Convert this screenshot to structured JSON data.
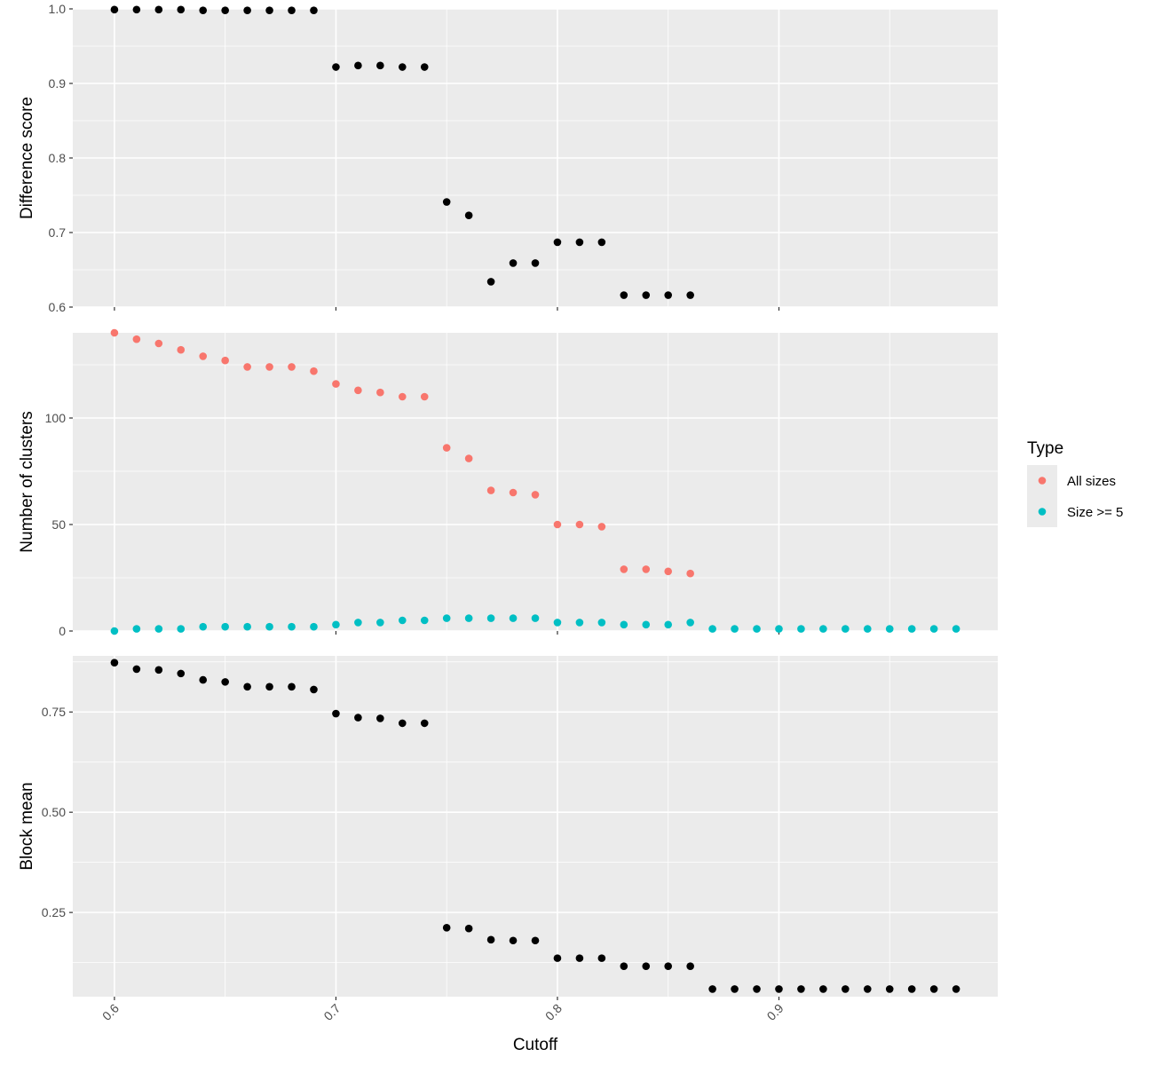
{
  "chart_data": [
    {
      "type": "scatter",
      "ylabel": "Difference score",
      "ylim": [
        0.6,
        1.0
      ],
      "yticks": [
        0.6,
        0.7,
        0.8,
        0.9,
        1.0
      ],
      "ytick_labels": [
        "0.6",
        "0.7",
        "0.8",
        "0.9",
        "1.0"
      ],
      "series": [
        {
          "color": "#000000",
          "x": [
            0.6,
            0.61,
            0.62,
            0.63,
            0.64,
            0.65,
            0.66,
            0.67,
            0.68,
            0.69,
            0.7,
            0.71,
            0.72,
            0.73,
            0.74,
            0.75,
            0.76,
            0.77,
            0.78,
            0.79,
            0.8,
            0.81,
            0.82,
            0.83,
            0.84,
            0.85,
            0.86
          ],
          "y": [
            0.999,
            0.999,
            0.999,
            0.999,
            0.998,
            0.998,
            0.998,
            0.998,
            0.998,
            0.998,
            0.922,
            0.924,
            0.924,
            0.922,
            0.922,
            0.741,
            0.723,
            0.634,
            0.659,
            0.659,
            0.687,
            0.687,
            0.687,
            0.616,
            0.616,
            0.616,
            0.616
          ]
        }
      ]
    },
    {
      "type": "scatter",
      "ylabel": "Number of clusters",
      "ylim": [
        0,
        140
      ],
      "yticks": [
        0,
        50,
        100
      ],
      "ytick_labels": [
        "0",
        "50",
        "100"
      ],
      "series": [
        {
          "name": "All sizes",
          "color": "#F8766D",
          "x": [
            0.6,
            0.61,
            0.62,
            0.63,
            0.64,
            0.65,
            0.66,
            0.67,
            0.68,
            0.69,
            0.7,
            0.71,
            0.72,
            0.73,
            0.74,
            0.75,
            0.76,
            0.77,
            0.78,
            0.79,
            0.8,
            0.81,
            0.82,
            0.83,
            0.84,
            0.85,
            0.86
          ],
          "y": [
            140,
            137,
            135,
            132,
            129,
            127,
            124,
            124,
            124,
            122,
            116,
            113,
            112,
            110,
            110,
            86,
            81,
            66,
            65,
            64,
            50,
            50,
            49,
            29,
            29,
            28,
            27
          ]
        },
        {
          "name": "Size >= 5",
          "color": "#00BFC4",
          "x": [
            0.6,
            0.61,
            0.62,
            0.63,
            0.64,
            0.65,
            0.66,
            0.67,
            0.68,
            0.69,
            0.7,
            0.71,
            0.72,
            0.73,
            0.74,
            0.75,
            0.76,
            0.77,
            0.78,
            0.79,
            0.8,
            0.81,
            0.82,
            0.83,
            0.84,
            0.85,
            0.86,
            0.87,
            0.88,
            0.89,
            0.9,
            0.91,
            0.92,
            0.93,
            0.94,
            0.95,
            0.96,
            0.97,
            0.98
          ],
          "y": [
            0,
            1,
            1,
            1,
            2,
            2,
            2,
            2,
            2,
            2,
            3,
            4,
            4,
            5,
            5,
            6,
            6,
            6,
            6,
            6,
            4,
            4,
            4,
            3,
            3,
            3,
            4,
            1,
            1,
            1,
            1,
            1,
            1,
            1,
            1,
            1,
            1,
            1,
            1
          ]
        }
      ]
    },
    {
      "type": "scatter",
      "xlabel": "Cutoff",
      "ylabel": "Block mean",
      "ylim": [
        0.04,
        0.89
      ],
      "yticks": [
        0.25,
        0.5,
        0.75
      ],
      "ytick_labels": [
        "0.25",
        "0.50",
        "0.75"
      ],
      "series": [
        {
          "color": "#000000",
          "x": [
            0.6,
            0.61,
            0.62,
            0.63,
            0.64,
            0.65,
            0.66,
            0.67,
            0.68,
            0.69,
            0.7,
            0.71,
            0.72,
            0.73,
            0.74,
            0.75,
            0.76,
            0.77,
            0.78,
            0.79,
            0.8,
            0.81,
            0.82,
            0.83,
            0.84,
            0.85,
            0.86,
            0.87,
            0.88,
            0.89,
            0.9,
            0.91,
            0.92,
            0.93,
            0.94,
            0.95,
            0.96,
            0.97,
            0.98
          ],
          "y": [
            0.873,
            0.857,
            0.855,
            0.846,
            0.83,
            0.825,
            0.813,
            0.813,
            0.813,
            0.806,
            0.746,
            0.736,
            0.734,
            0.722,
            0.722,
            0.212,
            0.21,
            0.182,
            0.18,
            0.18,
            0.136,
            0.136,
            0.136,
            0.116,
            0.116,
            0.116,
            0.116,
            0.059,
            0.059,
            0.059,
            0.059,
            0.059,
            0.059,
            0.059,
            0.059,
            0.059,
            0.059,
            0.059,
            0.059
          ]
        }
      ]
    }
  ],
  "x_axis": {
    "label": "Cutoff",
    "xlim": [
      0.5812,
      0.9988
    ],
    "ticks": [
      0.6,
      0.7,
      0.8,
      0.9
    ],
    "tick_labels": [
      "0.6",
      "0.7",
      "0.8",
      "0.9"
    ]
  },
  "legend": {
    "title": "Type",
    "placement": "right",
    "items": [
      {
        "label": "All sizes",
        "color": "#F8766D"
      },
      {
        "label": "Size >= 5",
        "color": "#00BFC4"
      }
    ]
  },
  "style": {
    "panel_background": "#EBEBEB",
    "grid_color": "#FFFFFF",
    "grid": true
  }
}
